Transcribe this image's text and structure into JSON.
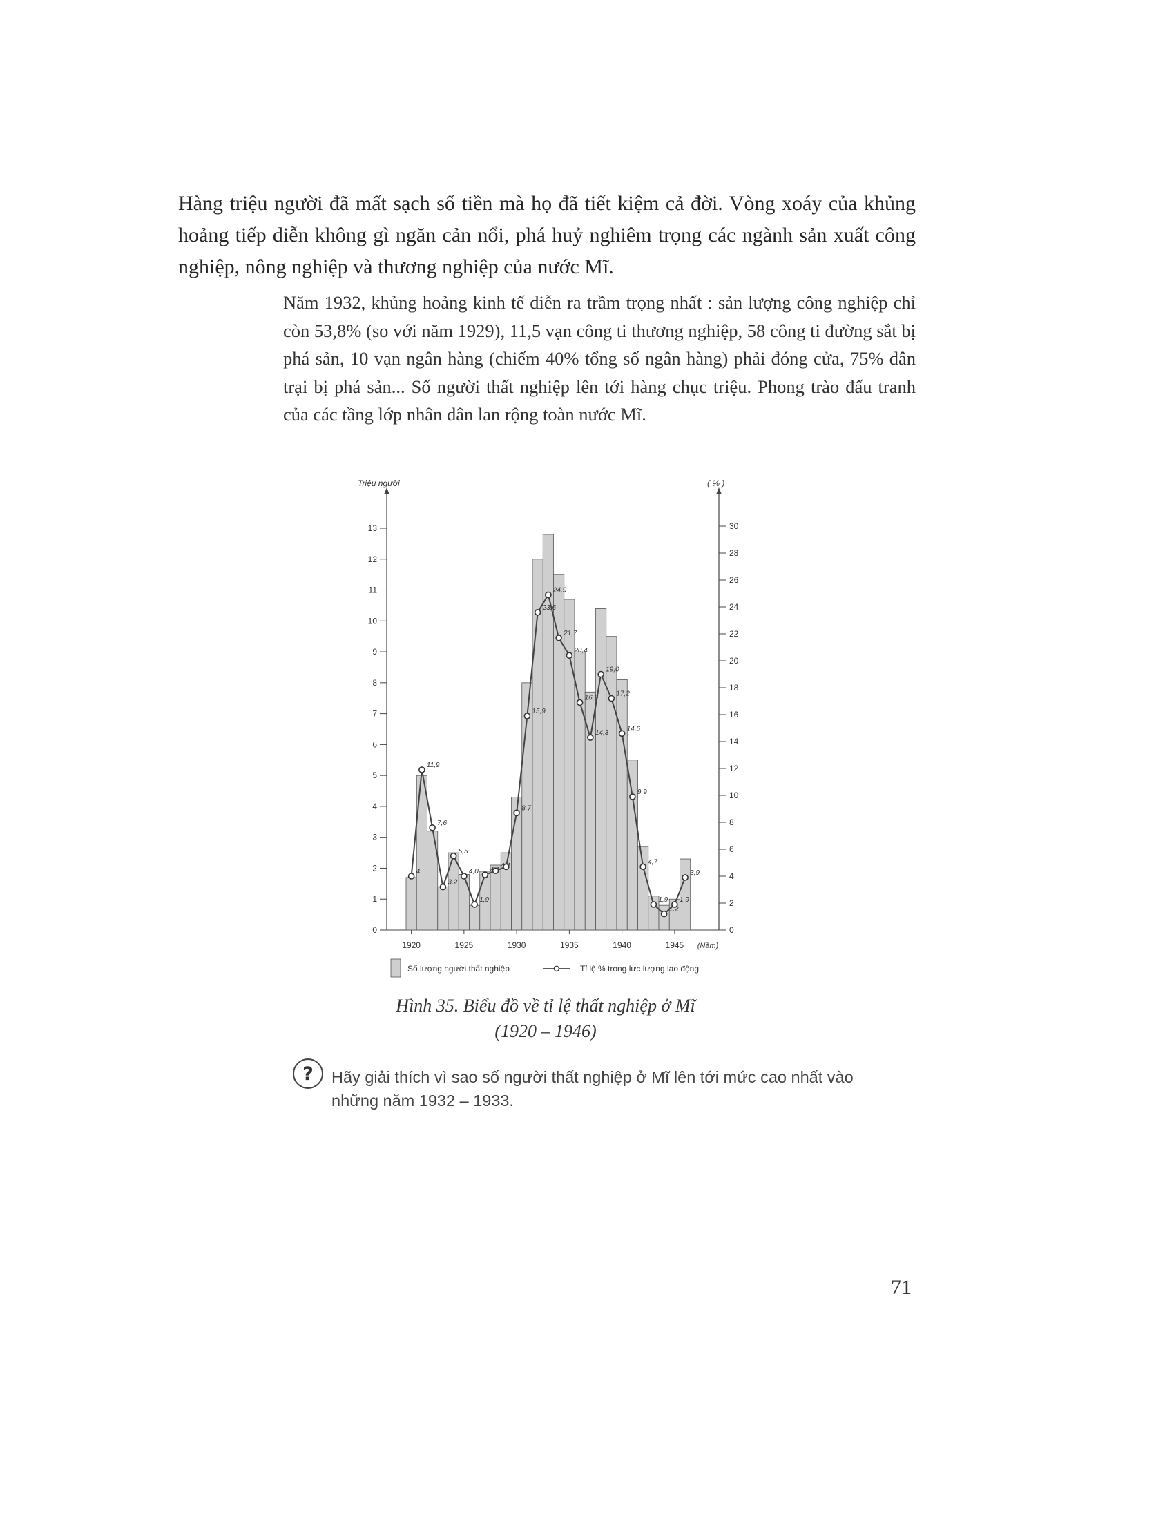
{
  "body": {
    "paragraph": "Hàng triệu người đã mất sạch số tiền mà họ đã tiết kiệm cả đời. Vòng xoáy của khủng hoảng tiếp diễn không gì ngăn cản nổi, phá huỷ nghiêm trọng các ngành sản xuất công nghiệp, nông nghiệp và thương nghiệp của nước Mĩ.",
    "detail": "Năm 1932, khủng hoảng kinh tế diễn ra trầm trọng nhất : sản lượng công nghiệp chỉ còn 53,8% (so với năm 1929), 11,5 vạn công ti thương nghiệp, 58 công ti đường sắt bị phá sản, 10 vạn ngân hàng (chiếm 40% tổng số ngân hàng) phải đóng cửa, 75% dân trại bị phá sản... Số người thất nghiệp lên tới hàng chục triệu. Phong trào đấu tranh của các tầng lớp nhân dân lan rộng toàn nước Mĩ."
  },
  "figure": {
    "caption_line1": "Hình 35. Biểu đồ về tỉ lệ thất nghiệp ở Mĩ",
    "caption_line2": "(1920 – 1946)"
  },
  "question": {
    "icon": "question-mark-icon",
    "text": "Hãy giải thích vì sao số người thất nghiệp ở Mĩ lên tới mức cao nhất vào những năm 1932 – 1933."
  },
  "page_number": "71",
  "chart_data": {
    "type": "bar+line",
    "y_left_label": "Triệu người",
    "y_right_label": "( % )",
    "x_unit_label": "(Năm)",
    "x_ticks": [
      "1920",
      "1925",
      "1930",
      "1935",
      "1940",
      "1945"
    ],
    "y_left_ticks": [
      "0",
      "1",
      "2",
      "3",
      "4",
      "5",
      "6",
      "7",
      "8",
      "9",
      "10",
      "11",
      "12",
      "13"
    ],
    "y_right_ticks": [
      "0",
      "2",
      "4",
      "6",
      "8",
      "10",
      "12",
      "14",
      "16",
      "18",
      "20",
      "22",
      "24",
      "26",
      "28",
      "30"
    ],
    "ylim_left": [
      0,
      13
    ],
    "ylim_right": [
      0,
      30
    ],
    "years": [
      1920,
      1921,
      1922,
      1923,
      1924,
      1925,
      1926,
      1927,
      1928,
      1929,
      1930,
      1931,
      1932,
      1933,
      1934,
      1935,
      1936,
      1937,
      1938,
      1939,
      1940,
      1941,
      1942,
      1943,
      1944,
      1945,
      1946
    ],
    "bars_name": "Số lượng người thất nghiệp",
    "bars": [
      1.7,
      5.0,
      3.2,
      1.4,
      2.5,
      1.8,
      0.8,
      1.9,
      2.1,
      2.5,
      4.3,
      8.0,
      12.0,
      12.8,
      11.5,
      10.7,
      9.0,
      7.7,
      10.4,
      9.5,
      8.1,
      5.5,
      2.7,
      1.1,
      0.8,
      1.0,
      2.3
    ],
    "line_name": "Tỉ lệ % trong lực lượng lao động",
    "line": [
      4.0,
      11.9,
      7.6,
      3.2,
      5.5,
      4.0,
      1.9,
      4.1,
      4.4,
      4.7,
      8.7,
      15.9,
      23.6,
      24.9,
      21.7,
      20.4,
      16.9,
      14.3,
      19.0,
      17.2,
      14.6,
      9.9,
      4.7,
      1.9,
      1.2,
      1.9,
      3.9
    ],
    "line_labels": [
      "4",
      "11,9",
      "7,6",
      "3,2",
      "5,5",
      "4,0",
      "1,9",
      "4,1",
      "4,4",
      "",
      "8,7",
      "15,9",
      "23,6",
      "24,9",
      "21,7",
      "20,4",
      "16,9",
      "14,3",
      "19,0",
      "17,2",
      "14,6",
      "9,9",
      "4,7",
      "1,9",
      "1,2",
      "1,9",
      "3,9"
    ],
    "legend": "bottom"
  }
}
